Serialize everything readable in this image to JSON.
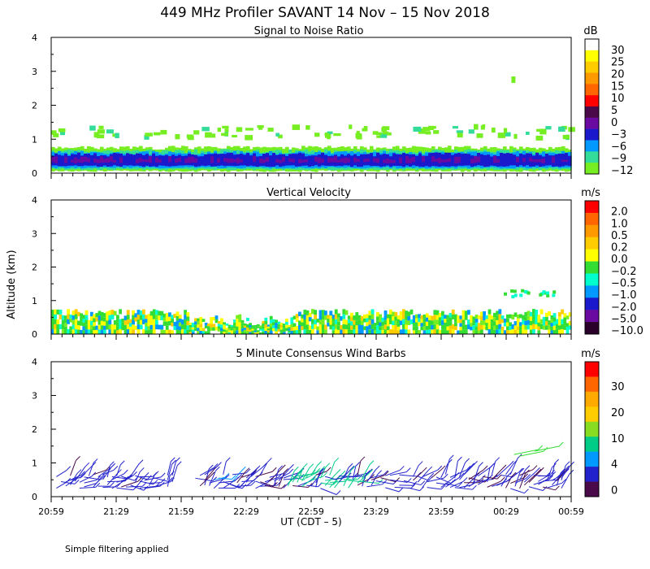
{
  "title": "449 MHz Profiler SAVANT 14 Nov – 15 Nov 2018",
  "y_label": "Altitude (km)",
  "x_label": "UT  (CDT – 5)",
  "x_ticks": [
    "20:59",
    "21:29",
    "21:59",
    "22:29",
    "22:59",
    "23:29",
    "23:59",
    "00:29",
    "00:59"
  ],
  "y_ticks": [
    "0",
    "1",
    "2",
    "3",
    "4"
  ],
  "footnote": "Simple filtering applied",
  "chart_data": [
    {
      "type": "heatmap",
      "title": "Signal to Noise Ratio",
      "units": "dB",
      "ylim": [
        0,
        4
      ],
      "xlim": [
        "20:59",
        "00:59"
      ],
      "colorbar": {
        "labels": [
          "30",
          "25",
          "20",
          "15",
          "10",
          "5",
          "0",
          "−3",
          "−6",
          "−9",
          "−12"
        ],
        "colors": [
          "#ffffff",
          "#ffff00",
          "#ffcc00",
          "#ff9900",
          "#ff6600",
          "#ff0000",
          "#4a0a4a",
          "#6a0aa0",
          "#1a1acc",
          "#0099ff",
          "#33dd99",
          "#77ee22"
        ]
      },
      "layers": [
        {
          "level_db": "-12 to -9",
          "color": "#77ee22",
          "from_km": 0.05,
          "to_km": 0.75
        },
        {
          "level_db": "-6",
          "color": "#33dd99",
          "from_km": 0.1,
          "to_km": 0.65
        },
        {
          "level_db": "-3",
          "color": "#0099ff",
          "from_km": 0.15,
          "to_km": 0.6
        },
        {
          "level_db": "0",
          "color": "#1a1acc",
          "from_km": 0.2,
          "to_km": 0.55
        },
        {
          "level_db": "5",
          "color": "#6a0aa0",
          "from_km": 0.3,
          "to_km": 0.45
        }
      ]
    },
    {
      "type": "heatmap",
      "title": "Vertical Velocity",
      "units": "m/s",
      "ylim": [
        0,
        4
      ],
      "xlim": [
        "20:59",
        "00:59"
      ],
      "colorbar": {
        "labels": [
          "2.0",
          "1.0",
          "0.5",
          "0.2",
          "0.0",
          "−0.2",
          "−0.5",
          "−1.0",
          "−2.0",
          "−5.0",
          "−10.0"
        ],
        "colors": [
          "#ff0000",
          "#ff6600",
          "#ff9900",
          "#ffcc00",
          "#ffff00",
          "#33dd33",
          "#00ffcc",
          "#0099ff",
          "#1a1acc",
          "#6a0aa0",
          "#2a002a"
        ]
      },
      "dominant_values": [
        "0.0",
        "−0.2"
      ],
      "echo_top_km": 0.75
    },
    {
      "type": "scatter",
      "title": "5 Minute Consensus Wind Barbs",
      "units": "m/s",
      "ylim": [
        0,
        4
      ],
      "xlim": [
        "20:59",
        "00:59"
      ],
      "colorbar": {
        "labels": [
          "30",
          "20",
          "10",
          "4",
          "0"
        ],
        "colors": [
          "#ff0000",
          "#ff6600",
          "#ffaa00",
          "#ffcc00",
          "#88dd22",
          "#00cc88",
          "#0099ff",
          "#2222cc",
          "#4a0a4a"
        ]
      },
      "barb_altitudes_km": [
        0.3,
        0.45,
        0.6
      ],
      "barb_speed_class": "4-10"
    }
  ]
}
